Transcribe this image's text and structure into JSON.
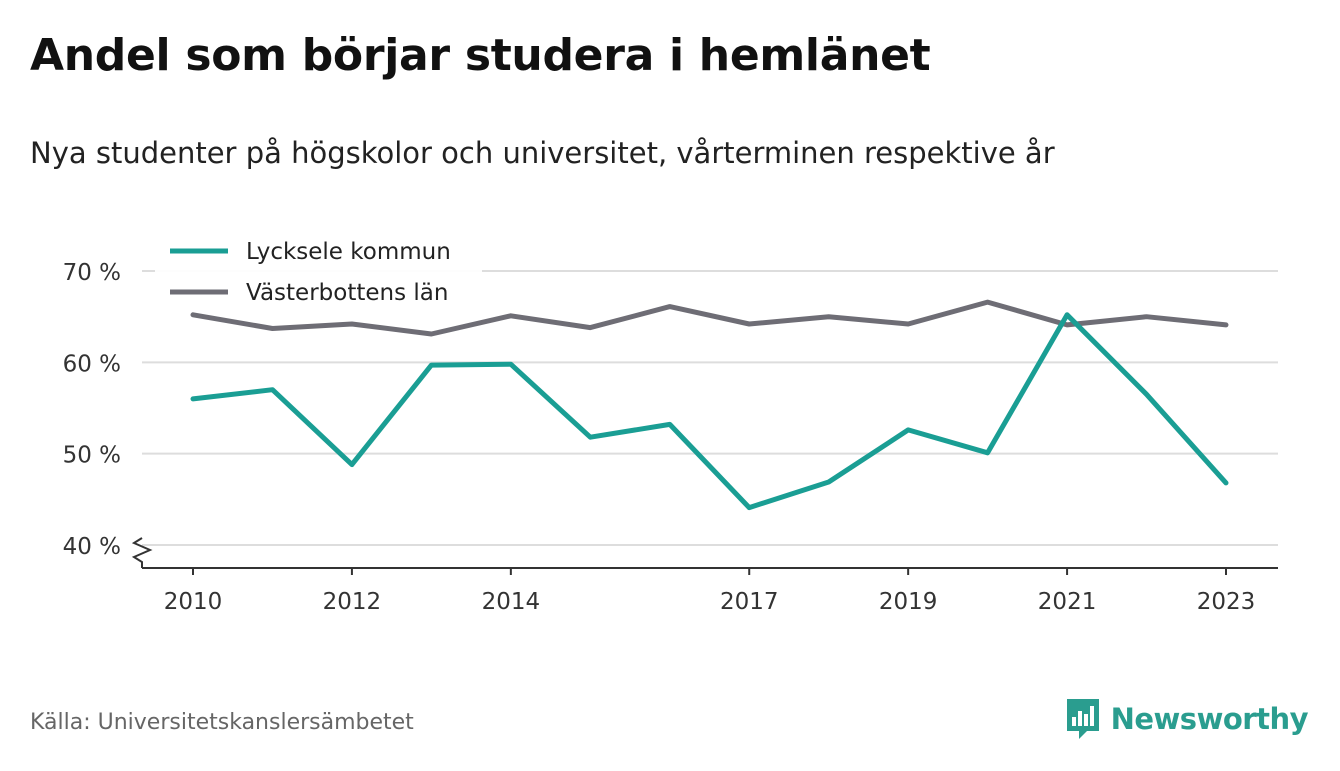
{
  "header": {
    "title": "Andel som börjar studera i hemlänet",
    "subtitle": "Nya studenter på högskolor och universitet, vårterminen respektive år"
  },
  "footer": {
    "source": "Källa: Universitetskanslersämbetet",
    "brand": "Newsworthy",
    "brand_icon": "newsworthy-logo-icon"
  },
  "colors": {
    "lycksele": "#1a9e94",
    "vasterbotten": "#6e6d75",
    "grid": "#dddddd",
    "axis": "#333333",
    "brand": "#2a9d8f"
  },
  "chart_data": {
    "type": "line",
    "x": [
      2010,
      2011,
      2012,
      2013,
      2014,
      2015,
      2016,
      2017,
      2018,
      2019,
      2020,
      2021,
      2022,
      2023
    ],
    "x_ticks": [
      "2010",
      "2012",
      "2014",
      "2017",
      "2019",
      "2021",
      "2023"
    ],
    "y_ticks": [
      "40 %",
      "50 %",
      "60 %",
      "70 %"
    ],
    "ylim": [
      40,
      70
    ],
    "y_axis_break": true,
    "grid": true,
    "legend_position": "top-left",
    "series": [
      {
        "name": "Lycksele kommun",
        "color": "#1a9e94",
        "values": [
          56,
          57,
          48.8,
          59.7,
          59.8,
          51.8,
          53.2,
          44.1,
          46.9,
          52.6,
          50.1,
          65.2,
          56.5,
          46.8
        ]
      },
      {
        "name": "Västerbottens län",
        "color": "#6e6d75",
        "values": [
          65.2,
          63.7,
          64.2,
          63.1,
          65.1,
          63.8,
          66.1,
          64.2,
          65,
          64.2,
          66.6,
          64.1,
          65,
          64.1
        ]
      }
    ]
  }
}
